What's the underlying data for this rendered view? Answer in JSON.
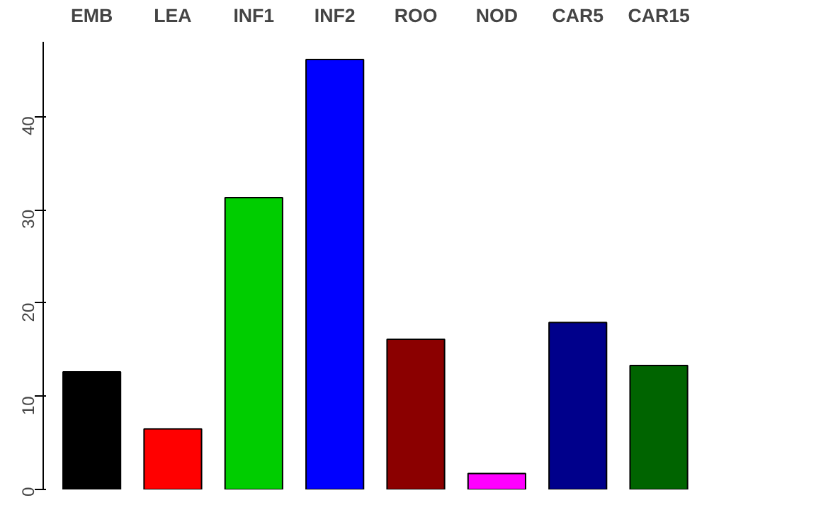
{
  "chart_data": {
    "type": "bar",
    "categories": [
      "EMB",
      "LEA",
      "INF1",
      "INF2",
      "ROO",
      "NOD",
      "CAR5",
      "CAR15"
    ],
    "values": [
      12.6,
      6.5,
      31.3,
      46.1,
      16.1,
      1.7,
      17.9,
      13.3
    ],
    "colors": [
      "#000000",
      "#ff0000",
      "#00cd00",
      "#0000ff",
      "#8b0000",
      "#ff00ff",
      "#00008b",
      "#006400"
    ],
    "ylim": [
      0,
      48
    ],
    "yticks": [
      0,
      10,
      20,
      30,
      40
    ],
    "grid": false
  }
}
